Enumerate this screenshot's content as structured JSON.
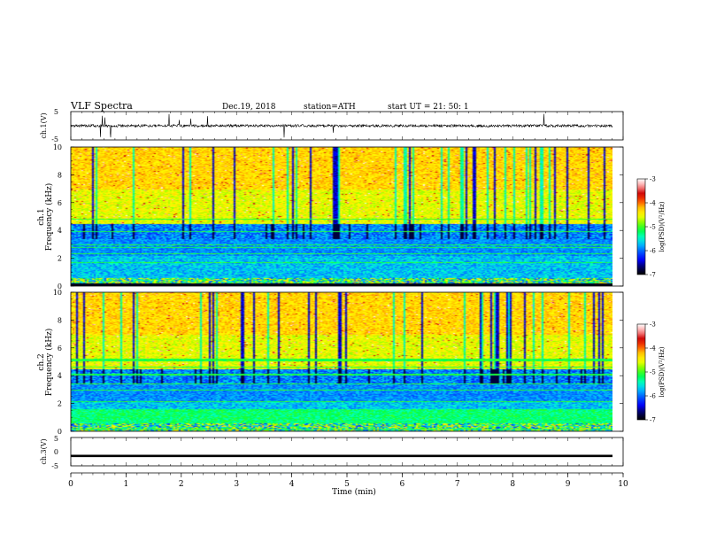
{
  "header": {
    "title": "VLF  Spectra",
    "date": "Dec.19, 2018",
    "station": "station=ATH",
    "start": "start  UT  =   21: 50: 1"
  },
  "colors": {
    "colormap": [
      "#ffffff",
      "#ff9a9a",
      "#cc0000",
      "#ff4a00",
      "#ffcc00",
      "#ffff00",
      "#7bff00",
      "#00ff44",
      "#00ffcc",
      "#00b4ff",
      "#0050ff",
      "#0000ff",
      "#000060",
      "#000000"
    ],
    "trace": "#000000",
    "axis": "#000000"
  },
  "chart_data": [
    {
      "type": "line",
      "panel": "ch1-waveform",
      "ylabel": "ch.1(V)",
      "ylim": [
        -5,
        5
      ],
      "yticks": [
        "5",
        "-5"
      ],
      "xlim": [
        0,
        10
      ],
      "note_level": "trace near 0 V with noise spikes",
      "series": [
        {
          "values_mean": 0.0,
          "noise_amplitude": 1.0
        }
      ]
    },
    {
      "type": "heatmap",
      "panel": "ch1-spectrogram",
      "ylabel": "ch.1\nFrequency  (kHz)",
      "ylabel_line1": "ch.1",
      "ylabel_line2": "Frequency  (kHz)",
      "ylim": [
        0,
        10
      ],
      "yticks": [
        "0",
        "2",
        "4",
        "6",
        "8",
        "10"
      ],
      "xlim": [
        0,
        10
      ],
      "colorbar": {
        "label": "log(PSD)(V²/Hz)",
        "range": [
          -7,
          -3
        ],
        "ticks": [
          "-3",
          "-4",
          "-5",
          "-6",
          "-7"
        ]
      }
    },
    {
      "type": "heatmap",
      "panel": "ch2-spectrogram",
      "ylabel_line1": "ch.2",
      "ylabel_line2": "Frequency  (kHz)",
      "ylim": [
        0,
        10
      ],
      "yticks": [
        "0",
        "2",
        "4",
        "6",
        "8",
        "10"
      ],
      "xlim": [
        0,
        10
      ],
      "colorbar": {
        "label": "log(PSD)(V²/Hz)",
        "range": [
          -7,
          -3
        ],
        "ticks": [
          "-3",
          "-4",
          "-5",
          "-6",
          "-7"
        ]
      }
    },
    {
      "type": "line",
      "panel": "ch3-waveform",
      "ylabel": "ch.3(V)",
      "ylim": [
        -5,
        5
      ],
      "yticks": [
        "5",
        "0",
        "-5"
      ],
      "xlim": [
        0,
        10
      ],
      "xlabel": "Time  (min)",
      "xticks": [
        "0",
        "1",
        "2",
        "3",
        "4",
        "5",
        "6",
        "7",
        "8",
        "9",
        "10"
      ],
      "series": [
        {
          "constant_value": -1.5
        }
      ]
    }
  ]
}
